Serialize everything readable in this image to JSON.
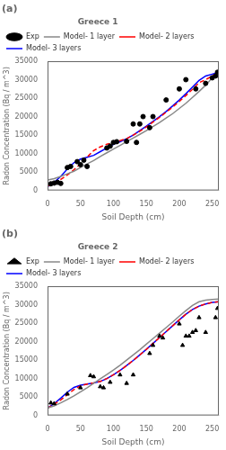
{
  "chart_data": [
    {
      "type": "line",
      "title": "Greece 1",
      "annotations": [
        "(a)"
      ],
      "x_label": "Soil Depth (cm)",
      "y_label": "Radon Concentration (Bq / m^3)",
      "series": [
        {
          "name": "Exp",
          "type": "scatter",
          "marker": "circle",
          "color": "black",
          "x": [
            5,
            10,
            15,
            20,
            30,
            35,
            45,
            50,
            55,
            60,
            90,
            95,
            100,
            105,
            120,
            130,
            135,
            140,
            145,
            155,
            160,
            180,
            200,
            210,
            225,
            240,
            250,
            255,
            258
          ],
          "values": [
            1800,
            2000,
            2200,
            1900,
            6200,
            6500,
            7800,
            7000,
            8200,
            6500,
            11500,
            12000,
            13000,
            13200,
            13300,
            18000,
            13000,
            18000,
            20000,
            17000,
            20000,
            24500,
            27500,
            30000,
            27500,
            29000,
            30500,
            31000,
            32000
          ]
        },
        {
          "name": "Model- 1 layer",
          "type": "line",
          "line_style": "solid",
          "color": "#888888",
          "x": [
            0,
            10,
            20,
            30,
            40,
            50,
            60,
            70,
            80,
            90,
            100,
            110,
            120,
            130,
            140,
            150,
            160,
            170,
            180,
            190,
            200,
            210,
            220,
            230,
            240,
            250,
            260
          ],
          "values": [
            2800,
            3200,
            3800,
            4500,
            5200,
            6200,
            7200,
            8100,
            9200,
            10200,
            11200,
            12200,
            13200,
            14200,
            15200,
            16200,
            17300,
            18400,
            19600,
            20800,
            22200,
            23600,
            25200,
            26800,
            28500,
            30500,
            32500
          ]
        },
        {
          "name": "Model- 2 layers",
          "type": "line",
          "line_style": "dashed",
          "color": "#ff0000",
          "x": [
            0,
            10,
            20,
            30,
            40,
            50,
            60,
            70,
            80,
            90,
            100,
            110,
            120,
            130,
            140,
            150,
            160,
            170,
            180,
            190,
            200,
            210,
            220,
            230,
            240,
            250,
            260
          ],
          "values": [
            1200,
            2000,
            3000,
            4200,
            5600,
            7200,
            9000,
            10800,
            11800,
            12500,
            13000,
            13500,
            14000,
            15000,
            16000,
            17200,
            18500,
            19800,
            21200,
            22600,
            24100,
            25700,
            27400,
            29200,
            30000,
            31000,
            32000
          ]
        },
        {
          "name": "Model- 3 layers",
          "type": "line",
          "line_style": "solid",
          "color": "#0000ff",
          "x": [
            0,
            10,
            20,
            30,
            40,
            50,
            60,
            70,
            80,
            90,
            100,
            110,
            120,
            130,
            140,
            150,
            160,
            170,
            180,
            190,
            200,
            210,
            220,
            230,
            240,
            250,
            260
          ],
          "values": [
            1000,
            2200,
            3800,
            5800,
            7500,
            8500,
            9000,
            9500,
            10500,
            11500,
            12500,
            13200,
            14000,
            15000,
            16200,
            17400,
            18700,
            20000,
            21400,
            22900,
            24500,
            26200,
            28000,
            29800,
            31000,
            31500,
            32000
          ]
        }
      ],
      "xlim": [
        0,
        260
      ],
      "xticks": [
        0,
        50,
        100,
        150,
        200,
        250
      ],
      "ylim": [
        0,
        35000
      ],
      "yticks": [
        0,
        5000,
        10000,
        15000,
        20000,
        25000,
        30000,
        35000
      ],
      "grid": false,
      "legend": "upper left"
    },
    {
      "type": "line",
      "title": "Greece 2",
      "annotations": [
        "(b)"
      ],
      "x_label": "Soil Depth (cm)",
      "y_label": "Radon Concentration (Bq / m^3)",
      "series": [
        {
          "name": "Exp",
          "type": "scatter",
          "marker": "triangle",
          "color": "black",
          "x": [
            5,
            10,
            30,
            50,
            65,
            70,
            80,
            85,
            95,
            110,
            120,
            130,
            155,
            160,
            170,
            175,
            200,
            205,
            210,
            215,
            220,
            225,
            230,
            240,
            255,
            258
          ],
          "values": [
            3400,
            3200,
            5800,
            7500,
            10800,
            10500,
            7800,
            7500,
            9000,
            11000,
            8700,
            11000,
            16800,
            19000,
            21500,
            21000,
            24800,
            19000,
            21500,
            21500,
            22500,
            23000,
            26500,
            22500,
            26500,
            29000
          ]
        },
        {
          "name": "Model- 1 layer",
          "type": "line",
          "line_style": "solid",
          "color": "#888888",
          "x": [
            0,
            10,
            20,
            30,
            40,
            50,
            60,
            70,
            80,
            90,
            100,
            110,
            120,
            130,
            140,
            150,
            160,
            170,
            180,
            190,
            200,
            210,
            220,
            230,
            240,
            250,
            260
          ],
          "values": [
            2000,
            2600,
            3400,
            4300,
            5300,
            6400,
            7500,
            8700,
            9900,
            11100,
            12300,
            13600,
            15000,
            16400,
            17800,
            19300,
            20800,
            22300,
            23800,
            25300,
            26900,
            28400,
            29800,
            30800,
            31200,
            31400,
            31500
          ]
        },
        {
          "name": "Model- 2 layers",
          "type": "line",
          "line_style": "dashed",
          "color": "#ff0000",
          "x": [
            0,
            10,
            20,
            30,
            40,
            50,
            60,
            70,
            80,
            90,
            100,
            110,
            120,
            130,
            140,
            150,
            160,
            170,
            180,
            190,
            200,
            210,
            220,
            230,
            240,
            250,
            260
          ],
          "values": [
            2000,
            3000,
            4200,
            5600,
            7000,
            8000,
            8500,
            8800,
            9200,
            10000,
            11000,
            12200,
            13500,
            14900,
            16400,
            17900,
            19500,
            21100,
            22700,
            24300,
            25900,
            27400,
            28700,
            29600,
            30200,
            30600,
            30800
          ]
        },
        {
          "name": "Model- 3 layers",
          "type": "line",
          "line_style": "solid",
          "color": "#0000ff",
          "x": [
            0,
            10,
            20,
            30,
            40,
            50,
            60,
            70,
            80,
            90,
            100,
            110,
            120,
            130,
            140,
            150,
            160,
            170,
            180,
            190,
            200,
            210,
            220,
            230,
            240,
            250,
            260
          ],
          "values": [
            2000,
            3200,
            4700,
            6300,
            7600,
            8200,
            8500,
            8800,
            9200,
            10000,
            11000,
            12200,
            13500,
            14900,
            16400,
            17900,
            19500,
            21100,
            22700,
            24300,
            25900,
            27400,
            28700,
            29600,
            30200,
            30600,
            30800
          ]
        }
      ],
      "xlim": [
        0,
        260
      ],
      "xticks": [
        0,
        50,
        100,
        150,
        200,
        250
      ],
      "ylim": [
        0,
        35000
      ],
      "yticks": [
        0,
        5000,
        10000,
        15000,
        20000,
        25000,
        30000,
        35000
      ],
      "grid": false,
      "legend": "upper left"
    }
  ]
}
